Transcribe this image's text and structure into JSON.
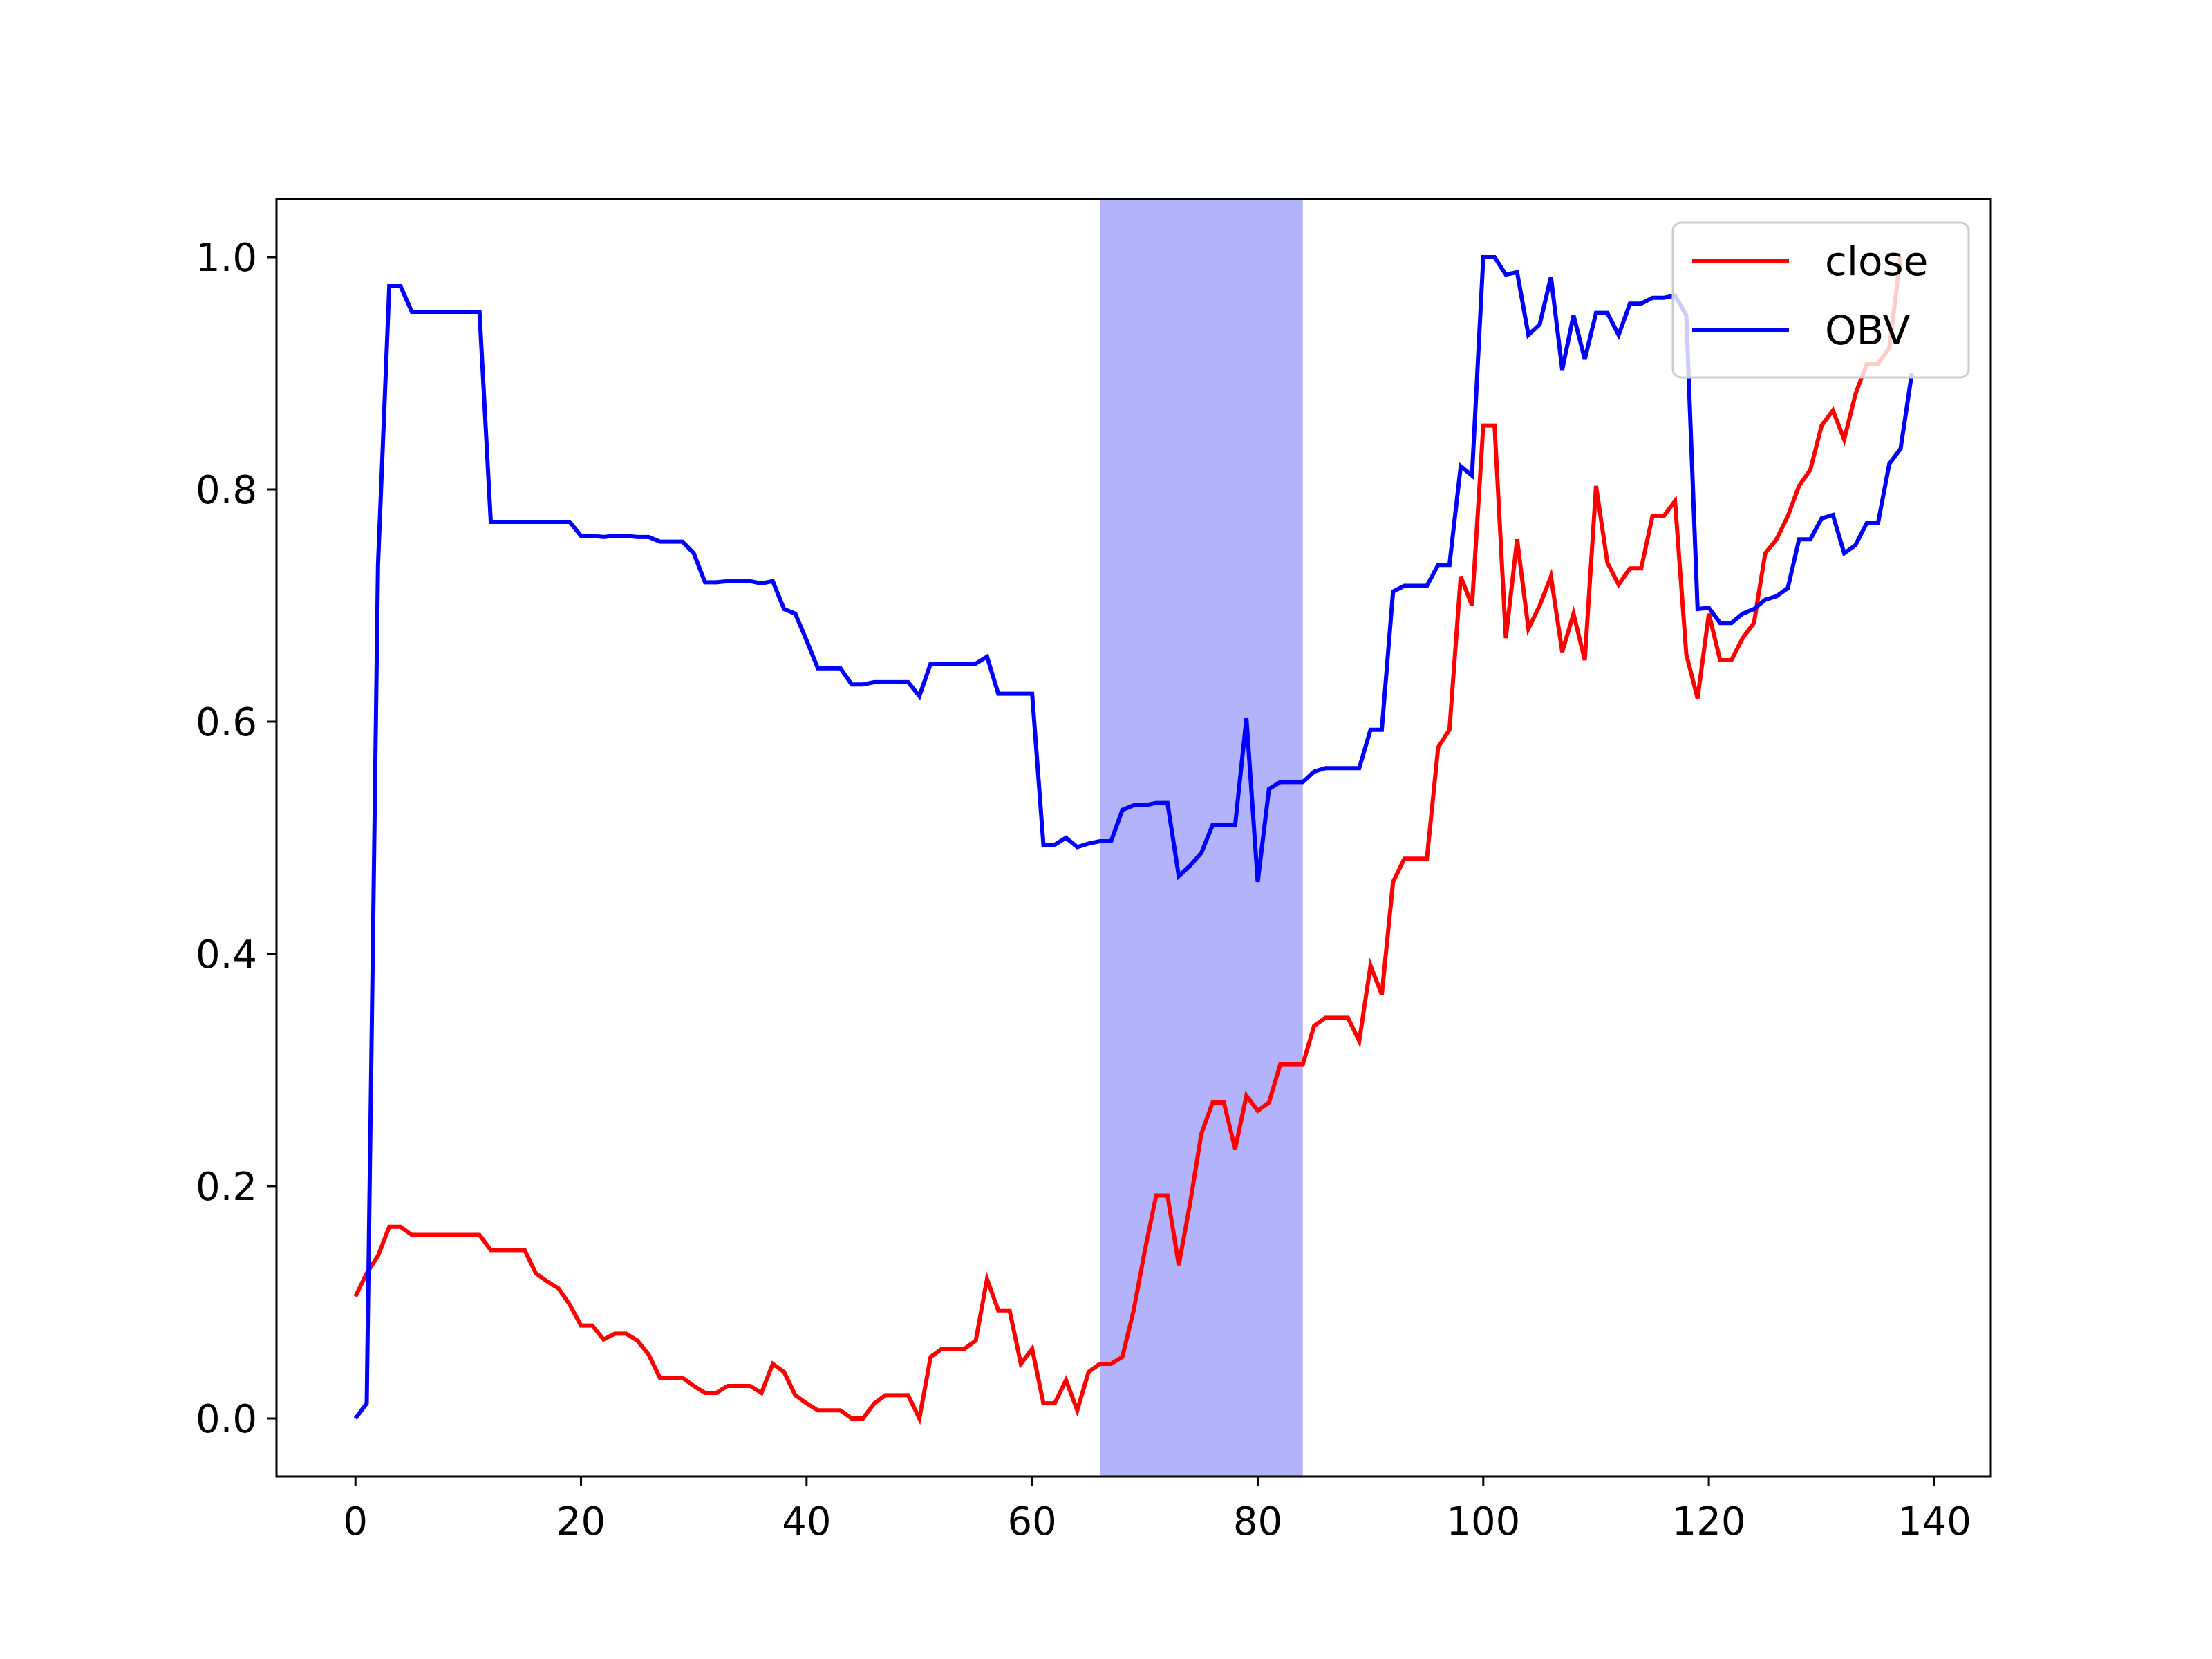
{
  "chart_data": {
    "type": "line",
    "title": "",
    "xlabel": "",
    "ylabel": "",
    "xlim": [
      -7,
      145
    ],
    "ylim": [
      -0.05,
      1.05
    ],
    "x_ticks": [
      0,
      20,
      40,
      60,
      80,
      100,
      120,
      140
    ],
    "x_tick_labels": [
      "0",
      "20",
      "40",
      "60",
      "80",
      "100",
      "120",
      "140"
    ],
    "y_ticks": [
      0.0,
      0.2,
      0.4,
      0.6,
      0.8,
      1.0
    ],
    "y_tick_labels": [
      "0.0",
      "0.2",
      "0.4",
      "0.6",
      "0.8",
      "1.0"
    ],
    "grid": false,
    "legend_position": "top-right",
    "highlight_span": {
      "x_start": 66,
      "x_end": 84,
      "color": "#b3b3fb"
    },
    "series": [
      {
        "name": "close",
        "color": "#ff0000",
        "points": [
          [
            0,
            0.105
          ],
          [
            1,
            0.125
          ],
          [
            2,
            0.14
          ],
          [
            3,
            0.165
          ],
          [
            4,
            0.165
          ],
          [
            5,
            0.158
          ],
          [
            6,
            0.158
          ],
          [
            7,
            0.158
          ],
          [
            8,
            0.158
          ],
          [
            9,
            0.158
          ],
          [
            10,
            0.158
          ],
          [
            11,
            0.158
          ],
          [
            12,
            0.145
          ],
          [
            13,
            0.145
          ],
          [
            14,
            0.145
          ],
          [
            15,
            0.145
          ],
          [
            16,
            0.125
          ],
          [
            17,
            0.118
          ],
          [
            18,
            0.112
          ],
          [
            19,
            0.098
          ],
          [
            20,
            0.08
          ],
          [
            21,
            0.08
          ],
          [
            22,
            0.068
          ],
          [
            23,
            0.073
          ],
          [
            24,
            0.073
          ],
          [
            25,
            0.067
          ],
          [
            26,
            0.055
          ],
          [
            27,
            0.035
          ],
          [
            28,
            0.035
          ],
          [
            29,
            0.035
          ],
          [
            30,
            0.028
          ],
          [
            31,
            0.022
          ],
          [
            32,
            0.022
          ],
          [
            33,
            0.028
          ],
          [
            34,
            0.028
          ],
          [
            35,
            0.028
          ],
          [
            36,
            0.022
          ],
          [
            37,
            0.047
          ],
          [
            38,
            0.04
          ],
          [
            39,
            0.02
          ],
          [
            40,
            0.013
          ],
          [
            41,
            0.007
          ],
          [
            42,
            0.007
          ],
          [
            43,
            0.007
          ],
          [
            44,
            0.0
          ],
          [
            45,
            0.0
          ],
          [
            46,
            0.013
          ],
          [
            47,
            0.02
          ],
          [
            48,
            0.02
          ],
          [
            49,
            0.02
          ],
          [
            50,
            0.0
          ],
          [
            51,
            0.053
          ],
          [
            52,
            0.06
          ],
          [
            53,
            0.06
          ],
          [
            54,
            0.06
          ],
          [
            55,
            0.067
          ],
          [
            56,
            0.12
          ],
          [
            57,
            0.093
          ],
          [
            58,
            0.093
          ],
          [
            59,
            0.047
          ],
          [
            60,
            0.06
          ],
          [
            61,
            0.013
          ],
          [
            62,
            0.013
          ],
          [
            63,
            0.033
          ],
          [
            64,
            0.007
          ],
          [
            65,
            0.04
          ],
          [
            66,
            0.047
          ],
          [
            67,
            0.047
          ],
          [
            68,
            0.053
          ],
          [
            69,
            0.093
          ],
          [
            70,
            0.145
          ],
          [
            71,
            0.192
          ],
          [
            72,
            0.192
          ],
          [
            73,
            0.132
          ],
          [
            74,
            0.185
          ],
          [
            75,
            0.245
          ],
          [
            76,
            0.272
          ],
          [
            77,
            0.272
          ],
          [
            78,
            0.232
          ],
          [
            79,
            0.278
          ],
          [
            80,
            0.265
          ],
          [
            81,
            0.272
          ],
          [
            82,
            0.305
          ],
          [
            83,
            0.305
          ],
          [
            84,
            0.305
          ],
          [
            85,
            0.338
          ],
          [
            86,
            0.345
          ],
          [
            87,
            0.345
          ],
          [
            88,
            0.345
          ],
          [
            89,
            0.325
          ],
          [
            90,
            0.39
          ],
          [
            91,
            0.365
          ],
          [
            92,
            0.462
          ],
          [
            93,
            0.482
          ],
          [
            94,
            0.482
          ],
          [
            95,
            0.482
          ],
          [
            96,
            0.578
          ],
          [
            97,
            0.593
          ],
          [
            98,
            0.725
          ],
          [
            99,
            0.7
          ],
          [
            100,
            0.855
          ],
          [
            101,
            0.855
          ],
          [
            102,
            0.672
          ],
          [
            103,
            0.757
          ],
          [
            104,
            0.68
          ],
          [
            105,
            0.7
          ],
          [
            106,
            0.725
          ],
          [
            107,
            0.66
          ],
          [
            108,
            0.693
          ],
          [
            109,
            0.653
          ],
          [
            110,
            0.803
          ],
          [
            111,
            0.737
          ],
          [
            112,
            0.718
          ],
          [
            113,
            0.732
          ],
          [
            114,
            0.732
          ],
          [
            115,
            0.777
          ],
          [
            116,
            0.777
          ],
          [
            117,
            0.79
          ],
          [
            118,
            0.658
          ],
          [
            119,
            0.62
          ],
          [
            120,
            0.693
          ],
          [
            121,
            0.653
          ],
          [
            122,
            0.653
          ],
          [
            123,
            0.672
          ],
          [
            124,
            0.685
          ],
          [
            125,
            0.745
          ],
          [
            126,
            0.757
          ],
          [
            127,
            0.777
          ],
          [
            128,
            0.803
          ],
          [
            129,
            0.817
          ],
          [
            130,
            0.855
          ],
          [
            131,
            0.868
          ],
          [
            132,
            0.843
          ],
          [
            133,
            0.882
          ],
          [
            134,
            0.908
          ],
          [
            135,
            0.908
          ],
          [
            136,
            0.922
          ],
          [
            137,
            1.0
          ]
        ]
      },
      {
        "name": "OBV",
        "color": "#0000ff",
        "points": [
          [
            0,
            0.0
          ],
          [
            1,
            0.013
          ],
          [
            2,
            0.735
          ],
          [
            3,
            0.975
          ],
          [
            4,
            0.975
          ],
          [
            5,
            0.953
          ],
          [
            6,
            0.953
          ],
          [
            7,
            0.953
          ],
          [
            8,
            0.953
          ],
          [
            9,
            0.953
          ],
          [
            10,
            0.953
          ],
          [
            11,
            0.953
          ],
          [
            12,
            0.772
          ],
          [
            13,
            0.772
          ],
          [
            14,
            0.772
          ],
          [
            15,
            0.772
          ],
          [
            16,
            0.772
          ],
          [
            17,
            0.772
          ],
          [
            18,
            0.772
          ],
          [
            19,
            0.772
          ],
          [
            20,
            0.76
          ],
          [
            21,
            0.76
          ],
          [
            22,
            0.759
          ],
          [
            23,
            0.76
          ],
          [
            24,
            0.76
          ],
          [
            25,
            0.759
          ],
          [
            26,
            0.759
          ],
          [
            27,
            0.755
          ],
          [
            28,
            0.755
          ],
          [
            29,
            0.755
          ],
          [
            30,
            0.745
          ],
          [
            31,
            0.72
          ],
          [
            32,
            0.72
          ],
          [
            33,
            0.721
          ],
          [
            34,
            0.721
          ],
          [
            35,
            0.721
          ],
          [
            36,
            0.719
          ],
          [
            37,
            0.721
          ],
          [
            38,
            0.697
          ],
          [
            39,
            0.693
          ],
          [
            40,
            0.67
          ],
          [
            41,
            0.646
          ],
          [
            42,
            0.646
          ],
          [
            43,
            0.646
          ],
          [
            44,
            0.632
          ],
          [
            45,
            0.632
          ],
          [
            46,
            0.634
          ],
          [
            47,
            0.634
          ],
          [
            48,
            0.634
          ],
          [
            49,
            0.634
          ],
          [
            50,
            0.622
          ],
          [
            51,
            0.65
          ],
          [
            52,
            0.65
          ],
          [
            53,
            0.65
          ],
          [
            54,
            0.65
          ],
          [
            55,
            0.65
          ],
          [
            56,
            0.656
          ],
          [
            57,
            0.624
          ],
          [
            58,
            0.624
          ],
          [
            59,
            0.624
          ],
          [
            60,
            0.624
          ],
          [
            61,
            0.494
          ],
          [
            62,
            0.494
          ],
          [
            63,
            0.5
          ],
          [
            64,
            0.492
          ],
          [
            65,
            0.495
          ],
          [
            66,
            0.497
          ],
          [
            67,
            0.497
          ],
          [
            68,
            0.524
          ],
          [
            69,
            0.528
          ],
          [
            70,
            0.528
          ],
          [
            71,
            0.53
          ],
          [
            72,
            0.53
          ],
          [
            73,
            0.467
          ],
          [
            74,
            0.476
          ],
          [
            75,
            0.487
          ],
          [
            76,
            0.511
          ],
          [
            77,
            0.511
          ],
          [
            78,
            0.511
          ],
          [
            79,
            0.603
          ],
          [
            80,
            0.462
          ],
          [
            81,
            0.542
          ],
          [
            82,
            0.548
          ],
          [
            83,
            0.548
          ],
          [
            84,
            0.548
          ],
          [
            85,
            0.557
          ],
          [
            86,
            0.56
          ],
          [
            87,
            0.56
          ],
          [
            88,
            0.56
          ],
          [
            89,
            0.56
          ],
          [
            90,
            0.593
          ],
          [
            91,
            0.593
          ],
          [
            92,
            0.712
          ],
          [
            93,
            0.717
          ],
          [
            94,
            0.717
          ],
          [
            95,
            0.717
          ],
          [
            96,
            0.735
          ],
          [
            97,
            0.735
          ],
          [
            98,
            0.82
          ],
          [
            99,
            0.812
          ],
          [
            100,
            1.0
          ],
          [
            101,
            1.0
          ],
          [
            102,
            0.985
          ],
          [
            103,
            0.987
          ],
          [
            104,
            0.933
          ],
          [
            105,
            0.942
          ],
          [
            106,
            0.983
          ],
          [
            107,
            0.903
          ],
          [
            108,
            0.95
          ],
          [
            109,
            0.912
          ],
          [
            110,
            0.952
          ],
          [
            111,
            0.952
          ],
          [
            112,
            0.933
          ],
          [
            113,
            0.96
          ],
          [
            114,
            0.96
          ],
          [
            115,
            0.965
          ],
          [
            116,
            0.965
          ],
          [
            117,
            0.967
          ],
          [
            118,
            0.95
          ],
          [
            119,
            0.697
          ],
          [
            120,
            0.698
          ],
          [
            121,
            0.685
          ],
          [
            122,
            0.685
          ],
          [
            123,
            0.693
          ],
          [
            124,
            0.697
          ],
          [
            125,
            0.705
          ],
          [
            126,
            0.708
          ],
          [
            127,
            0.715
          ],
          [
            128,
            0.757
          ],
          [
            129,
            0.757
          ],
          [
            130,
            0.775
          ],
          [
            131,
            0.778
          ],
          [
            132,
            0.745
          ],
          [
            133,
            0.752
          ],
          [
            134,
            0.771
          ],
          [
            135,
            0.771
          ],
          [
            136,
            0.822
          ],
          [
            137,
            0.835
          ],
          [
            138,
            0.9
          ]
        ]
      }
    ]
  }
}
